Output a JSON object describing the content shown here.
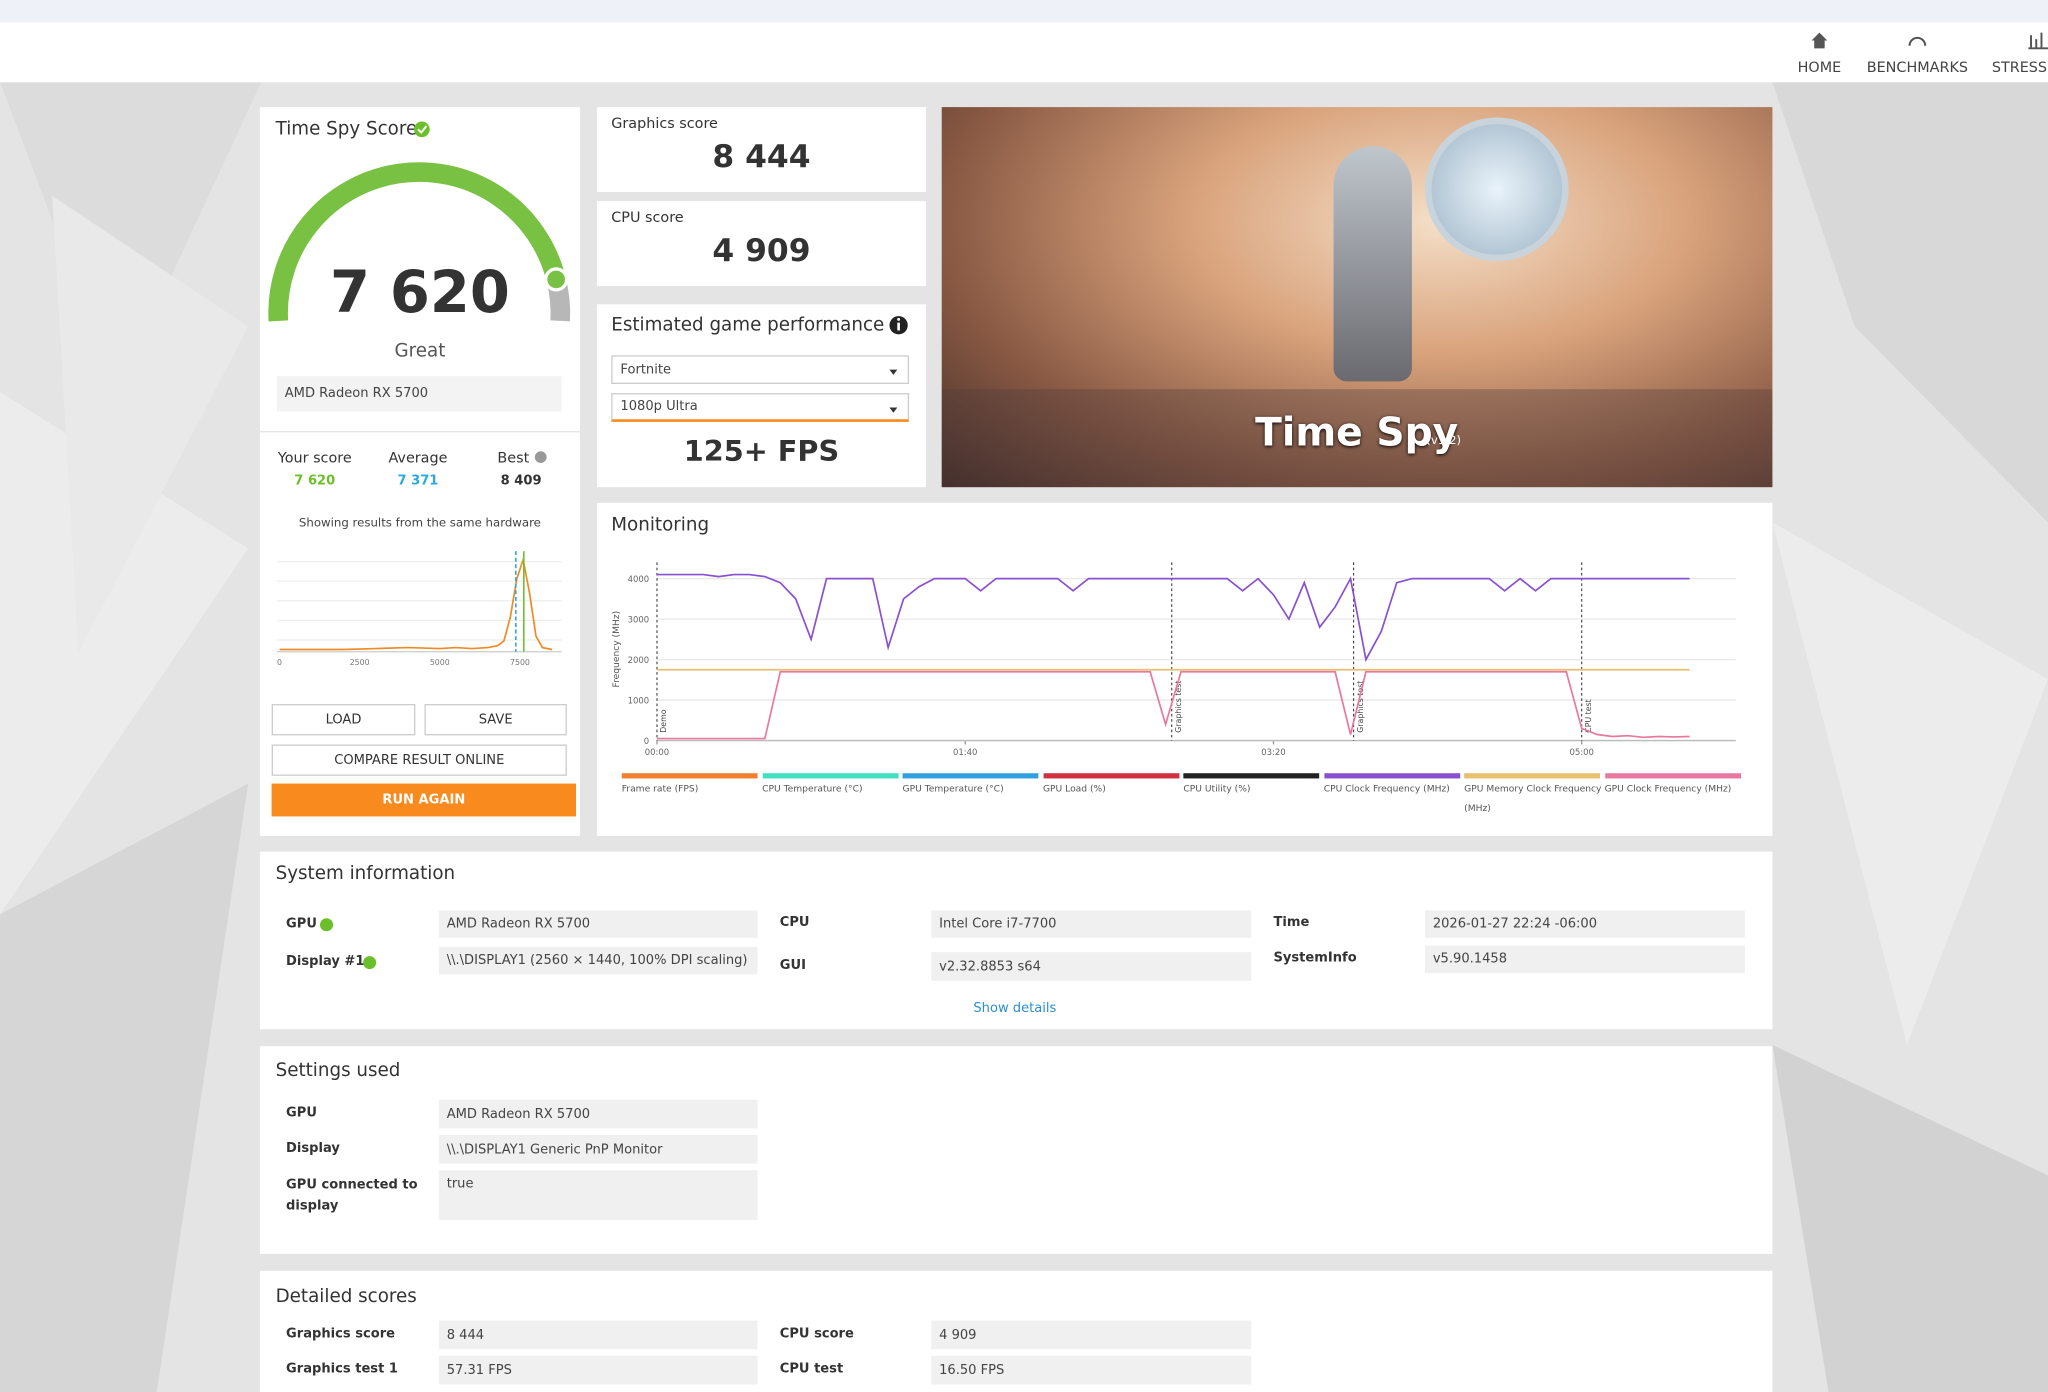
{
  "nav": [
    "HOME",
    "BENCHMARKS",
    "STRESS TESTS"
  ],
  "score_card": {
    "title": "Time Spy Score",
    "score": "7 620",
    "rating": "Great",
    "gpu": "AMD Radeon RX 5700",
    "comparison": [
      {
        "label": "Your score",
        "score": {
          "value": 7620,
          "label": "7 620"
        },
        "color": "#6bbf2a"
      },
      {
        "label": "Average",
        "score": {
          "value": 7371,
          "label": "7 371"
        },
        "color": "#2aa8e0"
      },
      {
        "label": "Best",
        "score": {
          "value": 8409,
          "label": "8 409"
        },
        "color": "#333333"
      }
    ],
    "note": "Showing results from the same hardware",
    "histogram": {
      "type": "line",
      "color": "#f08a24",
      "x": [
        0,
        1000,
        2000,
        3000,
        4000,
        5000,
        5500,
        6000,
        6500,
        6800,
        7000,
        7200,
        7400,
        7600,
        7800,
        8000,
        8200,
        8500
      ],
      "values": [
        1,
        1,
        1,
        2,
        3,
        2,
        3,
        2,
        3,
        5,
        10,
        35,
        75,
        95,
        60,
        15,
        3,
        1
      ],
      "xlim": [
        0,
        8800
      ],
      "ylim": [
        0,
        100
      ],
      "xticks": [
        0,
        2500,
        5000,
        7500
      ]
    },
    "buttons": [
      "LOAD",
      "SAVE",
      "COMPARE RESULT ONLINE",
      "RUN AGAIN"
    ]
  },
  "graphics_score": {
    "label": "Graphics score",
    "value": "8 444"
  },
  "cpu_score": {
    "label": "CPU score",
    "value": "4 909"
  },
  "game_performance": {
    "title": "Estimated game performance",
    "game": "Fortnite",
    "preset": "1080p Ultra",
    "fps": "125+ FPS"
  },
  "hero": {
    "title": "Time Spy",
    "version": "(v1.2)"
  },
  "monitoring": {
    "type": "line",
    "title": "Monitoring",
    "y_label": "Frequency (MHz)",
    "xlim": [
      0,
      350
    ],
    "ylim": [
      0,
      4400
    ],
    "yticks": [
      0,
      1000,
      2000,
      3000,
      4000
    ],
    "xticks": [
      {
        "value": 0,
        "label": "00:00"
      },
      {
        "value": 100,
        "label": "01:40"
      },
      {
        "value": 200,
        "label": "03:20"
      },
      {
        "value": 300,
        "label": "05:00"
      }
    ],
    "markers": [
      {
        "label": "Demo",
        "x": 0
      },
      {
        "label": "Graphics test",
        "x": 167
      },
      {
        "label": "Graphics test",
        "x": 226
      },
      {
        "label": "CPU test",
        "x": 300
      }
    ],
    "x": [
      0,
      5,
      10,
      15,
      20,
      25,
      30,
      35,
      40,
      45,
      50,
      55,
      60,
      65,
      70,
      75,
      80,
      85,
      90,
      95,
      100,
      105,
      110,
      115,
      120,
      125,
      130,
      135,
      140,
      145,
      150,
      155,
      160,
      165,
      170,
      175,
      180,
      185,
      190,
      195,
      200,
      205,
      210,
      215,
      220,
      225,
      230,
      235,
      240,
      245,
      250,
      255,
      260,
      265,
      270,
      275,
      280,
      285,
      290,
      295,
      300,
      305,
      310,
      315,
      320,
      325,
      330,
      335
    ],
    "series": [
      {
        "name": "Frame rate (FPS)",
        "color": "#f08030"
      },
      {
        "name": "CPU Temperature (°C)",
        "color": "#40e0c0"
      },
      {
        "name": "GPU Temperature (°C)",
        "color": "#30a0e0"
      },
      {
        "name": "GPU Load (%)",
        "color": "#d03040"
      },
      {
        "name": "CPU Utility (%)",
        "color": "#222222"
      },
      {
        "name": "CPU Clock Frequency (MHz)",
        "color": "#8a50d0",
        "values": [
          4100,
          4100,
          4100,
          4100,
          4050,
          4100,
          4100,
          4050,
          3900,
          3500,
          2500,
          4000,
          4000,
          4000,
          4000,
          2300,
          3500,
          3800,
          4000,
          4000,
          4000,
          3700,
          4000,
          4000,
          4000,
          4000,
          4000,
          3700,
          4000,
          4000,
          4000,
          4000,
          4000,
          4000,
          4000,
          4000,
          4000,
          4000,
          3700,
          4000,
          3600,
          3000,
          3900,
          2800,
          3300,
          4000,
          2000,
          2700,
          3900,
          4000,
          4000,
          4000,
          4000,
          4000,
          4000,
          3700,
          4000,
          3700,
          4000,
          4000,
          4000,
          4000,
          4000,
          4000,
          4000,
          4000,
          4000,
          4000
        ]
      },
      {
        "name": "GPU Memory Clock Frequency (MHz)",
        "color": "#e8c070",
        "values": [
          1750,
          1750,
          1750,
          1750,
          1750,
          1750,
          1750,
          1750,
          1750,
          1750,
          1750,
          1750,
          1750,
          1750,
          1750,
          1750,
          1750,
          1750,
          1750,
          1750,
          1750,
          1750,
          1750,
          1750,
          1750,
          1750,
          1750,
          1750,
          1750,
          1750,
          1750,
          1750,
          1750,
          1750,
          1750,
          1750,
          1750,
          1750,
          1750,
          1750,
          1750,
          1750,
          1750,
          1750,
          1750,
          1750,
          1750,
          1750,
          1750,
          1750,
          1750,
          1750,
          1750,
          1750,
          1750,
          1750,
          1750,
          1750,
          1750,
          1750,
          1750,
          1750,
          1750,
          1750,
          1750,
          1750,
          1750,
          1750
        ]
      },
      {
        "name": "GPU Clock Frequency (MHz)",
        "color": "#e878a0",
        "values": [
          50,
          50,
          50,
          50,
          50,
          50,
          50,
          50,
          1700,
          1700,
          1700,
          1700,
          1700,
          1700,
          1700,
          1700,
          1700,
          1700,
          1700,
          1700,
          1700,
          1700,
          1700,
          1700,
          1700,
          1700,
          1700,
          1700,
          1700,
          1700,
          1700,
          1700,
          1700,
          400,
          1700,
          1700,
          1700,
          1700,
          1700,
          1700,
          1700,
          1700,
          1700,
          1700,
          1700,
          150,
          1700,
          1700,
          1700,
          1700,
          1700,
          1700,
          1700,
          1700,
          1700,
          1700,
          1700,
          1700,
          1700,
          1700,
          300,
          150,
          100,
          120,
          80,
          100,
          90,
          100
        ]
      }
    ]
  },
  "system_info": {
    "title": "System information",
    "items": [
      {
        "label": "GPU",
        "value": "AMD Radeon RX 5700"
      },
      {
        "label": "Display #1",
        "value": "\\\\.\\DISPLAY1 (2560 × 1440, 100% DPI scaling)"
      },
      {
        "label": "CPU",
        "value": "Intel Core i7-7700"
      },
      {
        "label": "GUI",
        "value": "v2.32.8853 s64"
      },
      {
        "label": "Time",
        "value": "2026-01-27 22:24 -06:00"
      },
      {
        "label": "SystemInfo",
        "value": "v5.90.1458"
      }
    ],
    "show_details": "Show details"
  },
  "settings": {
    "title": "Settings used",
    "items": [
      {
        "label": "GPU",
        "value": "AMD Radeon RX 5700"
      },
      {
        "label": "Display",
        "value": "\\\\.\\DISPLAY1 Generic PnP Monitor"
      },
      {
        "label": "GPU connected to display",
        "value": "true"
      }
    ]
  },
  "detailed_scores": {
    "title": "Detailed scores",
    "items": [
      {
        "label": "Graphics score",
        "value": "8 444"
      },
      {
        "label": "Graphics test 1",
        "value": "57.31 FPS"
      },
      {
        "label": "CPU score",
        "value": "4 909"
      },
      {
        "label": "CPU test",
        "value": "16.50 FPS"
      }
    ]
  }
}
